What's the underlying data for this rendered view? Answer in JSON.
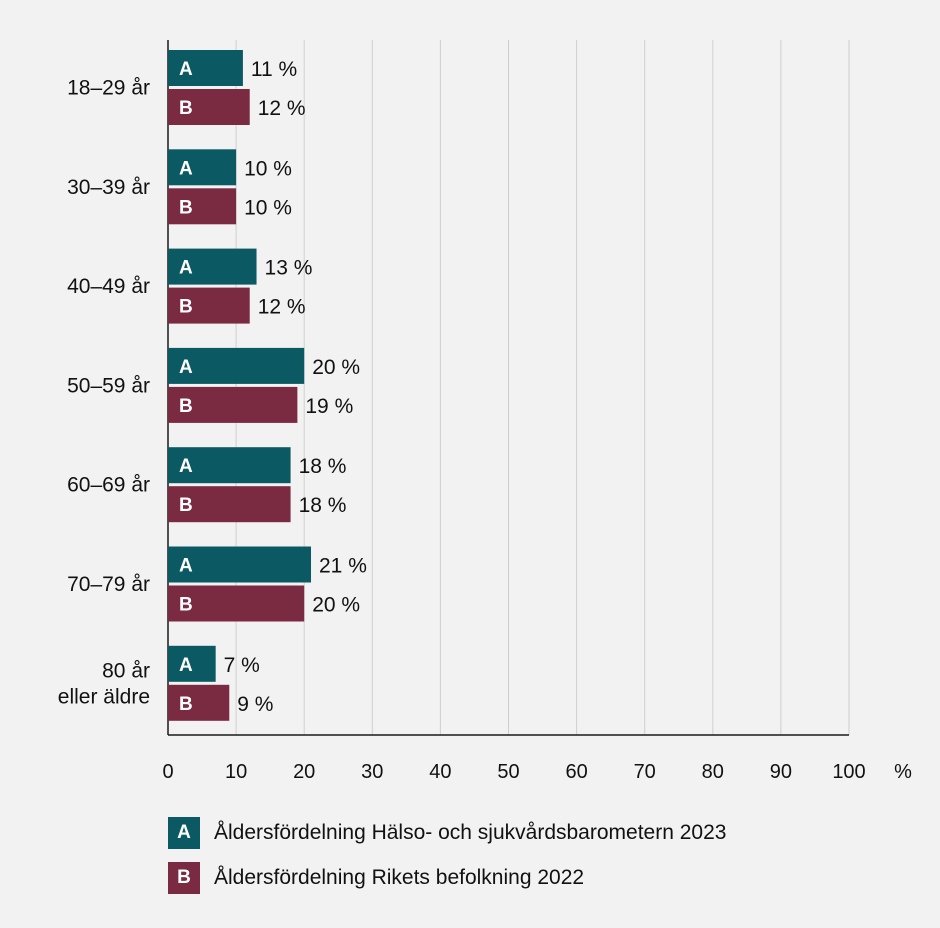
{
  "chart_data": {
    "type": "bar",
    "orientation": "horizontal",
    "categories": [
      "18–29 år",
      "30–39 år",
      "40–49 år",
      "50–59 år",
      "60–69 år",
      "70–79 år",
      "80 år eller äldre"
    ],
    "series": [
      {
        "name": "Åldersfördelning Hälso- och sjukvårdsbarometern 2023",
        "marker": "A",
        "color": "#0b5a63",
        "values": [
          11,
          10,
          13,
          20,
          18,
          21,
          7
        ]
      },
      {
        "name": "Åldersfördelning Rikets befolkning 2022",
        "marker": "B",
        "color": "#7a2b42",
        "values": [
          12,
          10,
          12,
          19,
          18,
          20,
          9
        ]
      }
    ],
    "value_labels": [
      [
        "11 %",
        "10 %",
        "13 %",
        "20 %",
        "18 %",
        "21 %",
        "7 %"
      ],
      [
        "12 %",
        "10 %",
        "12 %",
        "19 %",
        "18 %",
        "20 %",
        "9 %"
      ]
    ],
    "xticks": [
      "0",
      "10",
      "20",
      "30",
      "40",
      "50",
      "60",
      "70",
      "80",
      "90",
      "100"
    ],
    "xunit": "%",
    "xlim": [
      0,
      100
    ],
    "grid": "vertical",
    "legend_position": "bottom"
  }
}
